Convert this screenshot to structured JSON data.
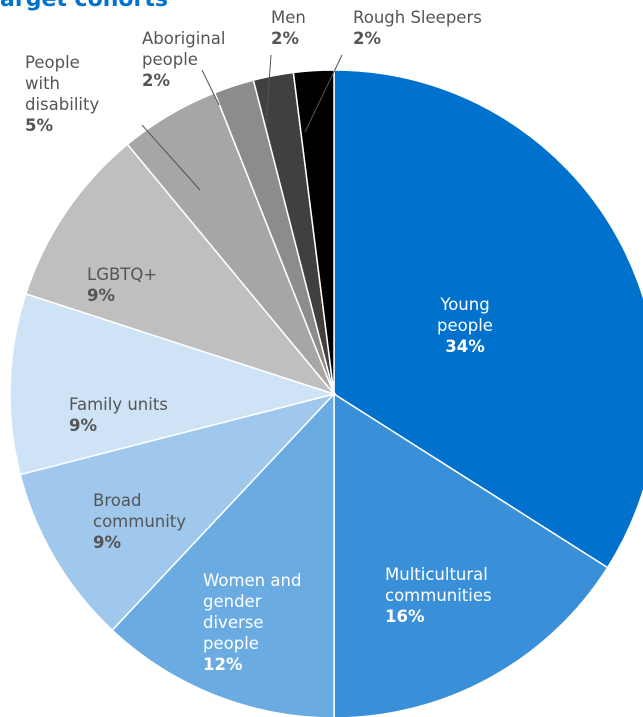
{
  "chart_data": {
    "type": "pie",
    "title": "arget cohorts",
    "categories": [
      "Young people",
      "Multicultural communities",
      "Women and gender diverse people",
      "Broad community",
      "Family units",
      "LGBTQ+",
      "People with disability",
      "Aboriginal people",
      "Men",
      "Rough Sleepers"
    ],
    "values": [
      34,
      16,
      12,
      9,
      9,
      9,
      5,
      2,
      2,
      2
    ],
    "labels": [
      {
        "name_lines": [
          "Young",
          "people"
        ],
        "pct": "34%"
      },
      {
        "name_lines": [
          "Multicultural",
          "communities"
        ],
        "pct": "16%"
      },
      {
        "name_lines": [
          "Women and",
          "gender",
          "diverse",
          "people"
        ],
        "pct": "12%"
      },
      {
        "name_lines": [
          "Broad",
          "community"
        ],
        "pct": "9%"
      },
      {
        "name_lines": [
          "Family units"
        ],
        "pct": "9%"
      },
      {
        "name_lines": [
          "LGBTQ+"
        ],
        "pct": "9%"
      },
      {
        "name_lines": [
          "People",
          "with",
          "disability"
        ],
        "pct": "5%"
      },
      {
        "name_lines": [
          "Aboriginal",
          "people"
        ],
        "pct": "2%"
      },
      {
        "name_lines": [
          "Men"
        ],
        "pct": "2%"
      },
      {
        "name_lines": [
          "Rough Sleepers"
        ],
        "pct": "2%"
      }
    ],
    "colors": [
      "#0072ce",
      "#3a8fd9",
      "#6aabe2",
      "#9fc8ec",
      "#cfe3f7",
      "#bfbfbf",
      "#a6a6a6",
      "#8c8c8c",
      "#404040",
      "#000000"
    ],
    "label_colors": [
      "#ffffff",
      "#ffffff",
      "#ffffff",
      "#555555",
      "#555555",
      "#555555",
      "#555555",
      "#555555",
      "#555555",
      "#555555"
    ],
    "start_angle_deg": 0,
    "direction": "clockwise"
  }
}
